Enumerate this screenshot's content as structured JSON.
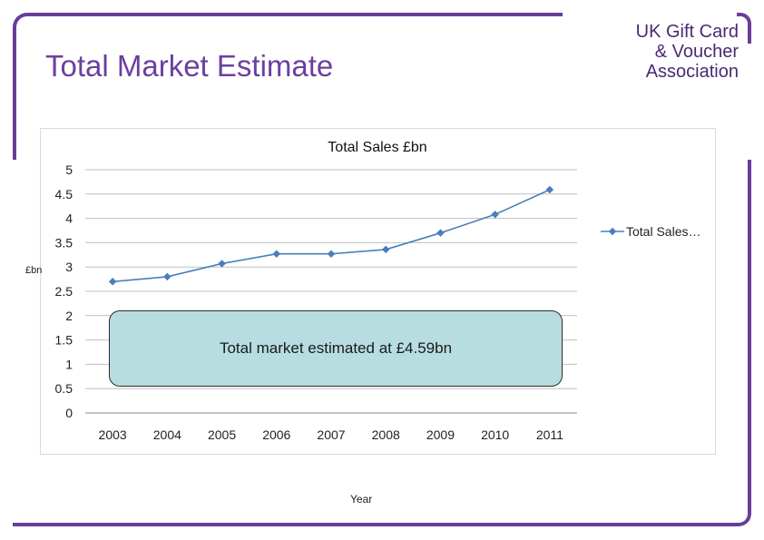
{
  "slide": {
    "title": "Total Market Estimate",
    "logo_lines": [
      "UK Gift Card",
      "& Voucher",
      "Association"
    ],
    "callout_text": "Total market estimated at £4.59bn",
    "x_axis_caption": "Year",
    "y_axis_caption": "£bn"
  },
  "colors": {
    "frame": "#6a3d9a",
    "title": "#6b3fa0",
    "line": "#4a7ebb",
    "callout_fill": "#b7dde1"
  },
  "chart_data": {
    "type": "line",
    "title": "Total Sales £bn",
    "categories": [
      "2003",
      "2004",
      "2005",
      "2006",
      "2007",
      "2008",
      "2009",
      "2010",
      "2011"
    ],
    "series": [
      {
        "name": "Total Sales…",
        "values": [
          2.7,
          2.8,
          3.07,
          3.27,
          3.27,
          3.36,
          3.7,
          4.08,
          4.59
        ]
      }
    ],
    "ylim": [
      0,
      5
    ],
    "yticks": [
      "0",
      "0.5",
      "1",
      "1.5",
      "2",
      "2.5",
      "3",
      "3.5",
      "4",
      "4.5",
      "5"
    ],
    "grid": true,
    "legend": "right"
  }
}
